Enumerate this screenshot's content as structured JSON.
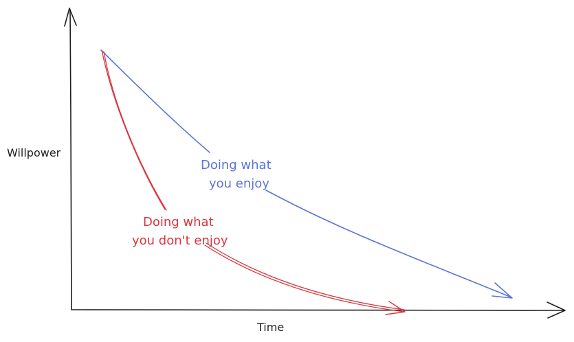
{
  "axes": {
    "y_label": "Willpower",
    "x_label": "Time"
  },
  "curves": {
    "enjoy": {
      "label_line1": "Doing what",
      "label_line2": "you enjoy",
      "color": "#5b74d6"
    },
    "dont_enjoy": {
      "label_line1": "Doing what",
      "label_line2": "you don't enjoy",
      "color": "#d9363e"
    }
  },
  "colors": {
    "axis": "#1e1e1e",
    "text": "#1e1e1e"
  }
}
